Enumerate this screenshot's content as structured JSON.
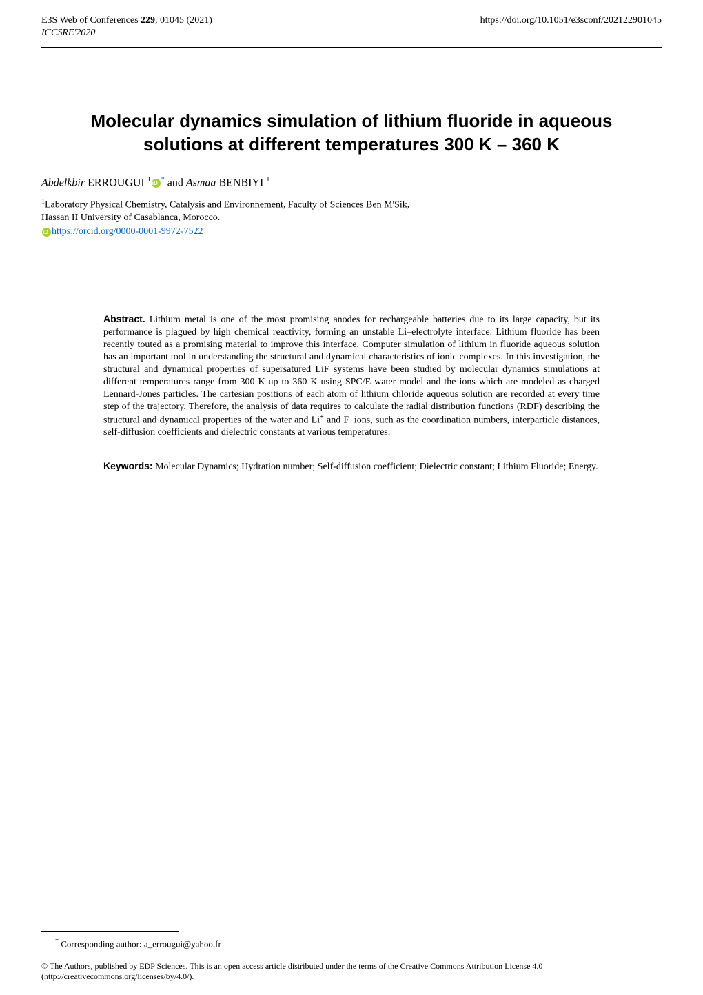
{
  "header": {
    "journal_prefix": "E3S Web of Conferences ",
    "volume": "229",
    "article_suffix": ", 01045 (2021)",
    "conference": "ICCSRE'2020",
    "doi": "https://doi.org/10.1051/e3sconf/202122901045"
  },
  "title": {
    "line1": "Molecular dynamics simulation of lithium fluoride in aqueous",
    "line2": "solutions at different temperatures 300 K – 360 K"
  },
  "authors": {
    "a1_first": "Abdelkbir",
    "a1_last": " ERROUGUI ",
    "a1_affil": "1",
    "a1_corr": "*",
    "and": " and ",
    "a2_first": "Asmaa",
    "a2_last": " BENBIYI ",
    "a2_affil": "1"
  },
  "affiliation": {
    "sup": "1",
    "line1": "Laboratory Physical Chemistry, Catalysis and Environnement, Faculty of Sciences Ben M'Sik,",
    "line2": " Hassan II University of Casablanca, Morocco."
  },
  "orcid": {
    "url": "https://orcid.org/0000-0001-9972-7522"
  },
  "abstract": {
    "label": "Abstract.",
    "text": " Lithium metal is one of the most promising anodes for rechargeable batteries due to its large capacity, but its performance is plagued by high chemical reactivity, forming an unstable Li–electrolyte interface. Lithium fluoride has been recently touted as a promising material to improve this interface. Computer simulation of lithium in fluoride aqueous solution has an important tool in understanding the structural and dynamical characteristics of ionic complexes. In this investigation, the structural and dynamical properties of supersatured LiF systems have been studied by molecular dynamics simulations at different temperatures range from 300 K up to 360 K using SPC/E water model and the ions which are modeled as charged Lennard-Jones particles. The cartesian positions of each atom of lithium chloride aqueous solution are recorded at every time step of the trajectory. Therefore, the analysis of data requires to calculate the radial distribution functions (RDF) describing the structural and dynamical properties of the water and Li",
    "plus": "+",
    "text2": " and F",
    "minus": "-",
    "text3": " ions, such as the coordination numbers, interparticle distances, self-diffusion coefficients and dielectric constants at various temperatures."
  },
  "keywords": {
    "label": "Keywords:",
    "text": " Molecular Dynamics; Hydration number; Self-diffusion coefficient; Dielectric constant; Lithium Fluoride; Energy."
  },
  "footnote": {
    "marker": "*",
    "text": " Corresponding author: ",
    "email": "a_errougui@yahoo.fr"
  },
  "license": {
    "text": "© The Authors, published by EDP Sciences. This is an open access article distributed under the terms of the Creative Commons Attribution License 4.0 (http://creativecommons.org/licenses/by/4.0/)."
  }
}
